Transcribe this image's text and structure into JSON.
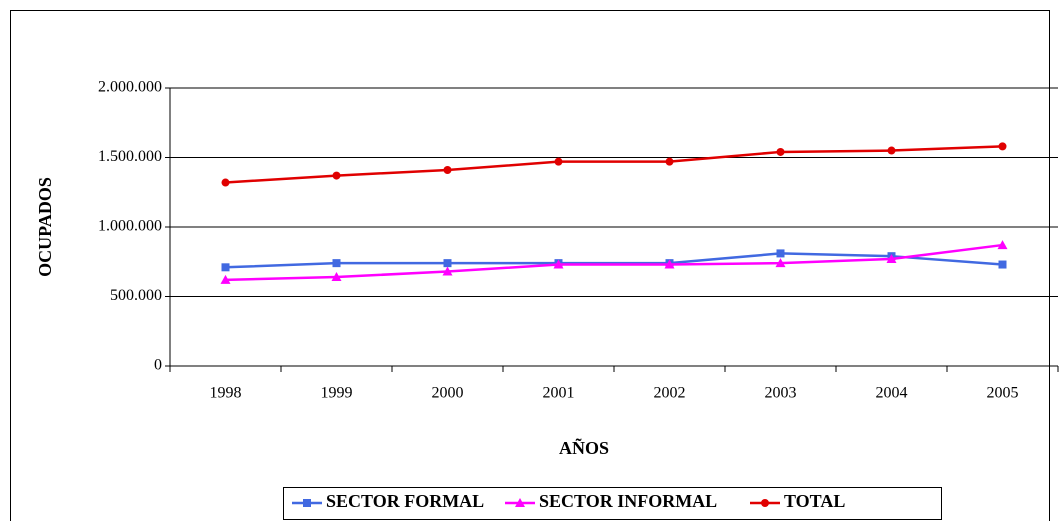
{
  "chart_data": {
    "type": "line",
    "x_label": "AÑOS",
    "y_label": "OCUPADOS",
    "categories": [
      "1998",
      "1999",
      "2000",
      "2001",
      "2002",
      "2003",
      "2004",
      "2005"
    ],
    "series": [
      {
        "name": "SECTOR FORMAL",
        "color": "#4169e1",
        "marker": "square",
        "values": [
          710000,
          740000,
          740000,
          740000,
          740000,
          810000,
          790000,
          730000
        ]
      },
      {
        "name": "SECTOR INFORMAL",
        "color": "#ff00ff",
        "marker": "triangle",
        "values": [
          620000,
          640000,
          680000,
          730000,
          730000,
          740000,
          770000,
          870000
        ]
      },
      {
        "name": "TOTAL",
        "color": "#e00000",
        "marker": "circle",
        "values": [
          1320000,
          1370000,
          1410000,
          1470000,
          1470000,
          1540000,
          1550000,
          1580000
        ]
      }
    ],
    "ylim": [
      0,
      2000000
    ],
    "yticks": [
      0,
      {
        "value": 500000,
        "label": "500.000"
      },
      {
        "value": 1000000,
        "label": "1.000.000"
      },
      {
        "value": 1500000,
        "label": "1.500.000"
      },
      {
        "value": 2000000,
        "label": "2.000.000"
      }
    ],
    "grid": true,
    "legend": "bottom"
  }
}
